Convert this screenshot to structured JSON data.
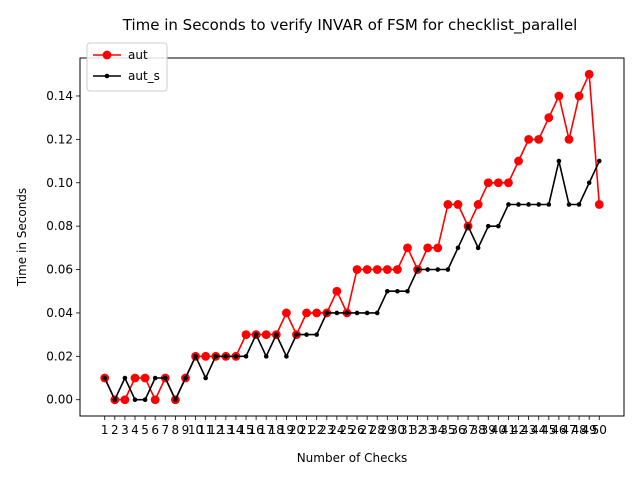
{
  "chart_data": {
    "type": "line",
    "title": "Time in Seconds to verify INVAR of FSM for checklist_parallel",
    "xlabel": "Number of Checks",
    "ylabel": "Time in Seconds",
    "ylim": [
      -0.0075,
      0.1575
    ],
    "yticks": [
      0.0,
      0.02,
      0.04,
      0.06,
      0.08,
      0.1,
      0.12,
      0.14
    ],
    "ytick_labels": [
      "0.00",
      "0.02",
      "0.04",
      "0.06",
      "0.08",
      "0.10",
      "0.12",
      "0.14"
    ],
    "x": [
      1,
      2,
      3,
      4,
      5,
      6,
      7,
      8,
      9,
      10,
      11,
      12,
      13,
      14,
      15,
      16,
      17,
      18,
      19,
      20,
      21,
      22,
      23,
      24,
      25,
      26,
      27,
      28,
      29,
      30,
      31,
      32,
      33,
      34,
      35,
      36,
      37,
      38,
      39,
      40,
      41,
      42,
      43,
      44,
      45,
      46,
      47,
      48,
      49,
      50
    ],
    "legend_position": "upper-left",
    "grid": false,
    "series": [
      {
        "name": "aut",
        "color": "#ff0000",
        "marker": "circle-large",
        "values": [
          0.01,
          0.0,
          0.0,
          0.01,
          0.01,
          0.0,
          0.01,
          0.0,
          0.01,
          0.02,
          0.02,
          0.02,
          0.02,
          0.02,
          0.03,
          0.03,
          0.03,
          0.03,
          0.04,
          0.03,
          0.04,
          0.04,
          0.04,
          0.05,
          0.04,
          0.06,
          0.06,
          0.06,
          0.06,
          0.06,
          0.07,
          0.06,
          0.07,
          0.07,
          0.09,
          0.09,
          0.08,
          0.09,
          0.1,
          0.1,
          0.1,
          0.11,
          0.12,
          0.12,
          0.13,
          0.14,
          0.12,
          0.14,
          0.15,
          0.09
        ]
      },
      {
        "name": "aut_s",
        "color": "#000000",
        "marker": "dot-small",
        "values": [
          0.01,
          0.0,
          0.01,
          0.0,
          0.0,
          0.01,
          0.01,
          0.0,
          0.01,
          0.02,
          0.01,
          0.02,
          0.02,
          0.02,
          0.02,
          0.03,
          0.02,
          0.03,
          0.02,
          0.03,
          0.03,
          0.03,
          0.04,
          0.04,
          0.04,
          0.04,
          0.04,
          0.04,
          0.05,
          0.05,
          0.05,
          0.06,
          0.06,
          0.06,
          0.06,
          0.07,
          0.08,
          0.07,
          0.08,
          0.08,
          0.09,
          0.09,
          0.09,
          0.09,
          0.09,
          0.11,
          0.09,
          0.09,
          0.1,
          0.11
        ]
      }
    ]
  }
}
